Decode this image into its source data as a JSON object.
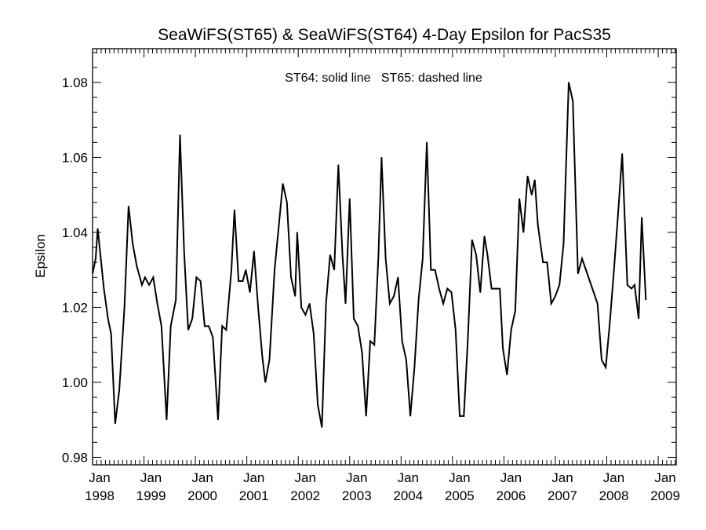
{
  "chart_data": {
    "type": "line",
    "title": "SeaWiFS(ST65) & SeaWiFS(ST64) 4-Day Epsilon for PacS35",
    "xlabel": "",
    "ylabel": "Epsilon",
    "annotation": "ST64: solid line   ST65: dashed line",
    "xlim": [
      1998.0,
      2009.35
    ],
    "ylim": [
      0.978,
      1.089
    ],
    "grid": false,
    "line_color": "#000000",
    "y_ticks": [
      "0.98",
      "1.00",
      "1.02",
      "1.04",
      "1.06",
      "1.08"
    ],
    "y_tick_values": [
      0.98,
      1.0,
      1.02,
      1.04,
      1.06,
      1.08
    ],
    "x_ticks": [
      {
        "month": "Jan",
        "year": "1998",
        "value": 1998
      },
      {
        "month": "Jan",
        "year": "1999",
        "value": 1999
      },
      {
        "month": "Jan",
        "year": "2000",
        "value": 2000
      },
      {
        "month": "Jan",
        "year": "2001",
        "value": 2001
      },
      {
        "month": "Jan",
        "year": "2002",
        "value": 2002
      },
      {
        "month": "Jan",
        "year": "2003",
        "value": 2003
      },
      {
        "month": "Jan",
        "year": "2004",
        "value": 2004
      },
      {
        "month": "Jan",
        "year": "2005",
        "value": 2005
      },
      {
        "month": "Jan",
        "year": "2006",
        "value": 2006
      },
      {
        "month": "Jan",
        "year": "2007",
        "value": 2007
      },
      {
        "month": "Jan",
        "year": "2008",
        "value": 2008
      },
      {
        "month": "Jan",
        "year": "2009",
        "value": 2009
      }
    ],
    "series": [
      {
        "style": "solid",
        "points": [
          [
            1998.0,
            1.029
          ],
          [
            1998.06,
            1.033
          ],
          [
            1998.1,
            1.041
          ],
          [
            1998.16,
            1.033
          ],
          [
            1998.22,
            1.025
          ],
          [
            1998.3,
            1.017
          ],
          [
            1998.36,
            1.013
          ],
          [
            1998.44,
            0.989
          ],
          [
            1998.52,
            0.998
          ],
          [
            1998.62,
            1.02
          ],
          [
            1998.7,
            1.047
          ],
          [
            1998.78,
            1.037
          ],
          [
            1998.86,
            1.031
          ],
          [
            1998.96,
            1.026
          ],
          [
            1999.02,
            1.028
          ],
          [
            1999.1,
            1.026
          ],
          [
            1999.18,
            1.028
          ],
          [
            1999.26,
            1.021
          ],
          [
            1999.34,
            1.015
          ],
          [
            1999.44,
            0.99
          ],
          [
            1999.52,
            1.015
          ],
          [
            1999.62,
            1.022
          ],
          [
            1999.7,
            1.066
          ],
          [
            1999.78,
            1.035
          ],
          [
            1999.86,
            1.014
          ],
          [
            1999.94,
            1.017
          ],
          [
            2000.02,
            1.028
          ],
          [
            2000.1,
            1.027
          ],
          [
            2000.18,
            1.015
          ],
          [
            2000.26,
            1.015
          ],
          [
            2000.34,
            1.012
          ],
          [
            2000.44,
            0.99
          ],
          [
            2000.52,
            1.015
          ],
          [
            2000.6,
            1.014
          ],
          [
            2000.7,
            1.03
          ],
          [
            2000.76,
            1.046
          ],
          [
            2000.84,
            1.027
          ],
          [
            2000.92,
            1.027
          ],
          [
            2000.98,
            1.03
          ],
          [
            2001.06,
            1.024
          ],
          [
            2001.14,
            1.035
          ],
          [
            2001.22,
            1.02
          ],
          [
            2001.3,
            1.007
          ],
          [
            2001.36,
            1.0
          ],
          [
            2001.44,
            1.006
          ],
          [
            2001.54,
            1.03
          ],
          [
            2001.7,
            1.053
          ],
          [
            2001.78,
            1.048
          ],
          [
            2001.86,
            1.028
          ],
          [
            2001.94,
            1.023
          ],
          [
            2001.98,
            1.04
          ],
          [
            2002.06,
            1.02
          ],
          [
            2002.14,
            1.018
          ],
          [
            2002.22,
            1.021
          ],
          [
            2002.3,
            1.013
          ],
          [
            2002.38,
            0.994
          ],
          [
            2002.46,
            0.988
          ],
          [
            2002.54,
            1.021
          ],
          [
            2002.62,
            1.034
          ],
          [
            2002.7,
            1.03
          ],
          [
            2002.78,
            1.058
          ],
          [
            2002.86,
            1.034
          ],
          [
            2002.92,
            1.021
          ],
          [
            2003.0,
            1.049
          ],
          [
            2003.08,
            1.017
          ],
          [
            2003.16,
            1.015
          ],
          [
            2003.24,
            1.008
          ],
          [
            2003.32,
            0.991
          ],
          [
            2003.4,
            1.011
          ],
          [
            2003.48,
            1.01
          ],
          [
            2003.56,
            1.034
          ],
          [
            2003.62,
            1.06
          ],
          [
            2003.7,
            1.033
          ],
          [
            2003.78,
            1.021
          ],
          [
            2003.86,
            1.023
          ],
          [
            2003.94,
            1.028
          ],
          [
            2004.02,
            1.011
          ],
          [
            2004.1,
            1.006
          ],
          [
            2004.18,
            0.991
          ],
          [
            2004.26,
            1.004
          ],
          [
            2004.34,
            1.022
          ],
          [
            2004.42,
            1.033
          ],
          [
            2004.5,
            1.064
          ],
          [
            2004.58,
            1.03
          ],
          [
            2004.66,
            1.03
          ],
          [
            2004.74,
            1.025
          ],
          [
            2004.82,
            1.021
          ],
          [
            2004.9,
            1.025
          ],
          [
            2004.98,
            1.024
          ],
          [
            2005.06,
            1.014
          ],
          [
            2005.14,
            0.991
          ],
          [
            2005.22,
            0.991
          ],
          [
            2005.3,
            1.012
          ],
          [
            2005.38,
            1.038
          ],
          [
            2005.46,
            1.034
          ],
          [
            2005.54,
            1.024
          ],
          [
            2005.62,
            1.039
          ],
          [
            2005.68,
            1.034
          ],
          [
            2005.76,
            1.025
          ],
          [
            2005.84,
            1.025
          ],
          [
            2005.92,
            1.025
          ],
          [
            2005.98,
            1.009
          ],
          [
            2006.06,
            1.002
          ],
          [
            2006.14,
            1.014
          ],
          [
            2006.22,
            1.019
          ],
          [
            2006.3,
            1.049
          ],
          [
            2006.38,
            1.04
          ],
          [
            2006.46,
            1.055
          ],
          [
            2006.54,
            1.05
          ],
          [
            2006.6,
            1.054
          ],
          [
            2006.66,
            1.042
          ],
          [
            2006.76,
            1.032
          ],
          [
            2006.84,
            1.032
          ],
          [
            2006.92,
            1.021
          ],
          [
            2007.0,
            1.023
          ],
          [
            2007.08,
            1.026
          ],
          [
            2007.16,
            1.037
          ],
          [
            2007.26,
            1.08
          ],
          [
            2007.34,
            1.075
          ],
          [
            2007.44,
            1.029
          ],
          [
            2007.52,
            1.033
          ],
          [
            2007.62,
            1.029
          ],
          [
            2007.72,
            1.025
          ],
          [
            2007.82,
            1.021
          ],
          [
            2007.9,
            1.006
          ],
          [
            2007.98,
            1.004
          ],
          [
            2008.06,
            1.016
          ],
          [
            2008.14,
            1.03
          ],
          [
            2008.22,
            1.045
          ],
          [
            2008.3,
            1.061
          ],
          [
            2008.4,
            1.026
          ],
          [
            2008.48,
            1.025
          ],
          [
            2008.54,
            1.026
          ],
          [
            2008.62,
            1.017
          ],
          [
            2008.68,
            1.044
          ],
          [
            2008.76,
            1.022
          ]
        ]
      }
    ]
  }
}
